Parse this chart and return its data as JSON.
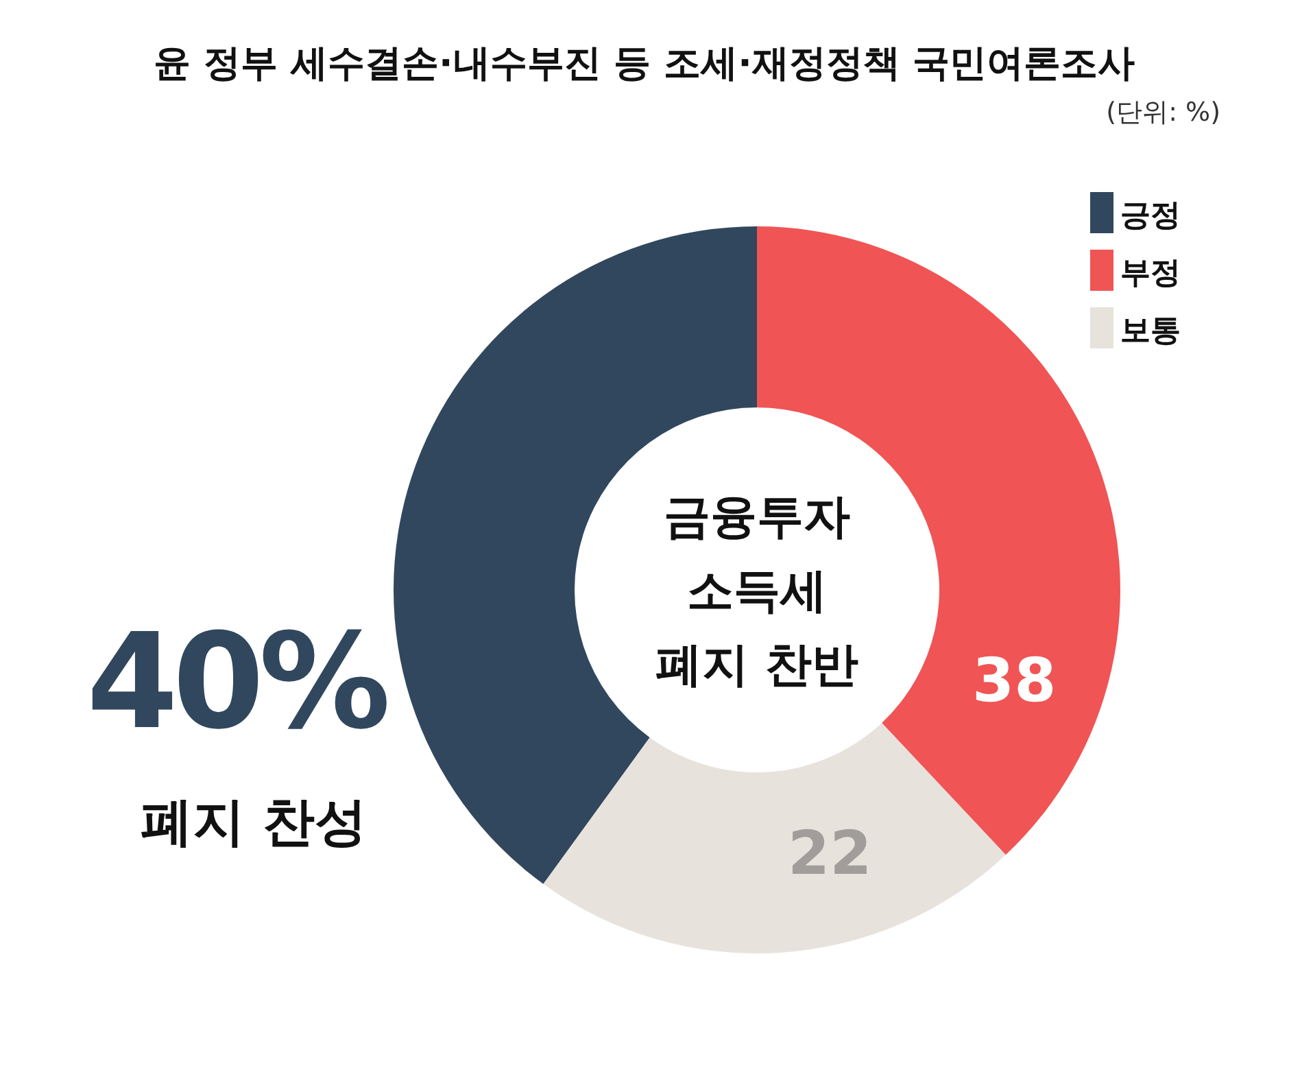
{
  "chart_data": {
    "type": "donut",
    "title": "윤 정부 세수결손·내수부진 등 조세·재정정책 국민여론조사",
    "subtitle": "(단위: %)",
    "categories": [
      "긍정",
      "부정",
      "보통"
    ],
    "values": [
      40,
      38,
      22
    ],
    "colors": [
      "#31475e",
      "#f05454",
      "#e8e2dc"
    ],
    "value_labels": [
      null,
      "38",
      "22"
    ],
    "legend": "top right",
    "annotations": [
      "40%",
      "폐지 찬성",
      "금융투자 소득세 폐지 찬반"
    ]
  }
}
